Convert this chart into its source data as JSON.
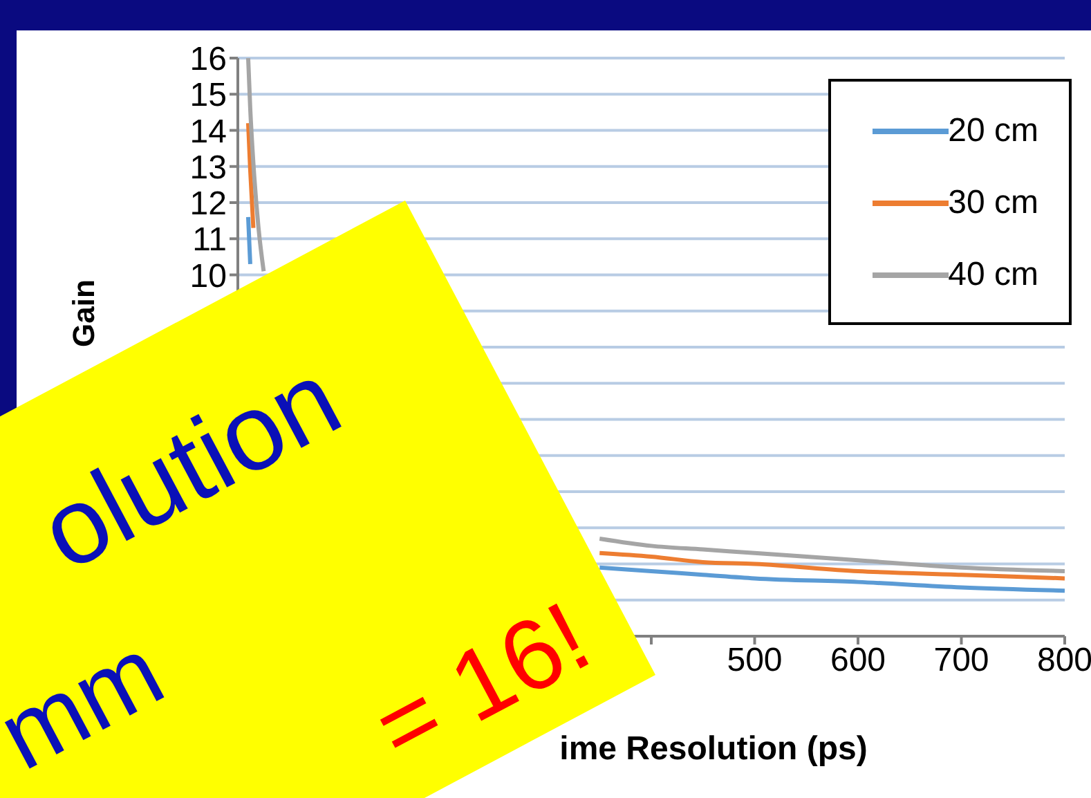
{
  "chart_data": {
    "type": "line",
    "xlabel": "ime Resolution (ps)",
    "ylabel": "Gain",
    "x": [
      10,
      12,
      15,
      20,
      25,
      100,
      350,
      400,
      450,
      500,
      600,
      700,
      800
    ],
    "series": [
      {
        "name": "20 cm",
        "color": "#5b9bd5",
        "values": [
          11.6,
          10.3,
          null,
          null,
          null,
          null,
          1.9,
          1.8,
          1.7,
          1.6,
          1.5,
          1.35,
          1.26
        ]
      },
      {
        "name": "30 cm",
        "color": "#ed7d31",
        "values": [
          14.2,
          12.9,
          11.3,
          null,
          null,
          null,
          2.3,
          2.2,
          2.05,
          2.0,
          1.8,
          1.7,
          1.6
        ]
      },
      {
        "name": "40 cm",
        "color": "#a5a5a5",
        "values": [
          16,
          14.6,
          13.1,
          11.3,
          10.1,
          null,
          2.7,
          2.5,
          2.4,
          2.3,
          2.1,
          1.9,
          1.8
        ]
      }
    ],
    "xlim": [
      0,
      800
    ],
    "xticks": [
      {
        "value": 400,
        "label": null
      },
      500,
      600,
      700,
      800
    ],
    "ylim": [
      0,
      16
    ],
    "yticks": [
      {
        "value": 0,
        "label": null
      },
      {
        "value": 1,
        "label": null
      },
      {
        "value": 2,
        "label": null
      },
      {
        "value": 3,
        "label": null
      },
      {
        "value": 4,
        "label": null
      },
      {
        "value": 5,
        "label": null
      },
      {
        "value": 6,
        "label": null
      },
      {
        "value": 7,
        "label": null
      },
      {
        "value": 8,
        "label": null
      },
      {
        "value": 9,
        "label": null
      },
      10,
      11,
      12,
      13,
      14,
      15,
      16
    ],
    "grid": "y",
    "legend": "top right",
    "annotations": [
      "olution",
      "mm",
      "= 16!"
    ]
  }
}
